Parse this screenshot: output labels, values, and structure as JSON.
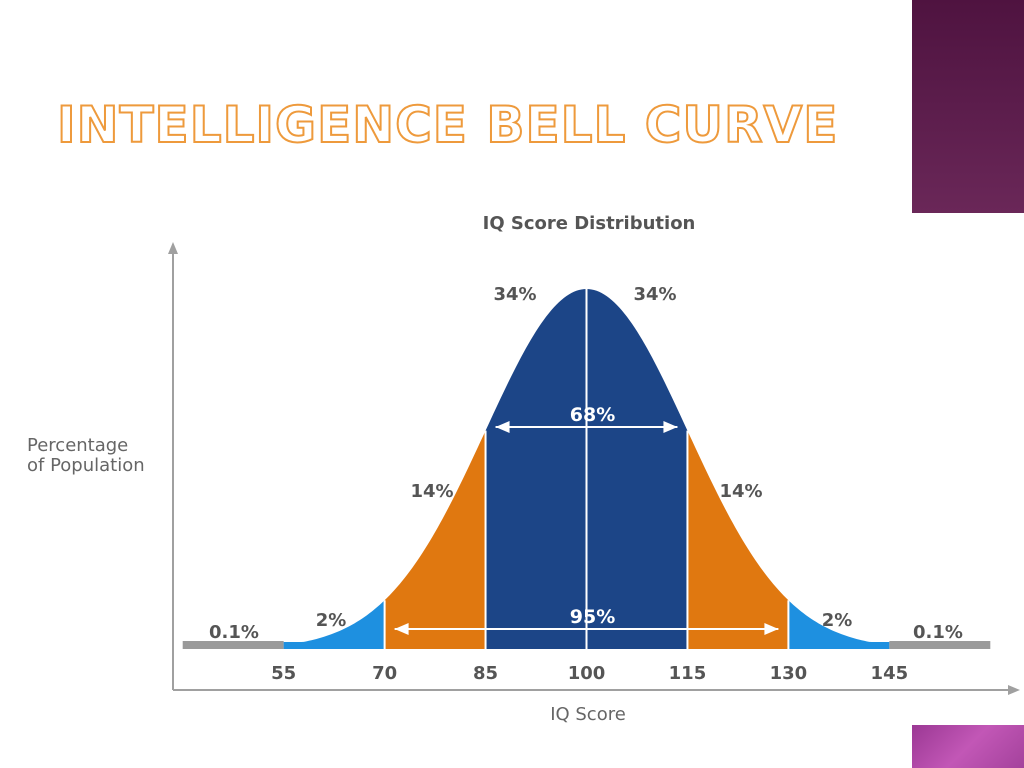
{
  "slide": {
    "title": "INTELLIGENCE BELL CURVE",
    "accent_colors": {
      "title_outline": "#ee9a3c",
      "deco_dark": "#4f1340",
      "deco_light": "#c257b6"
    }
  },
  "chart_data": {
    "type": "area",
    "title": "IQ Score Distribution",
    "xlabel": "IQ Score",
    "ylabel_lines": [
      "Percentage",
      "of Population"
    ],
    "x_ticks": [
      55,
      70,
      85,
      100,
      115,
      130,
      145
    ],
    "distribution": {
      "mean": 100,
      "std_dev": 15
    },
    "regions": [
      {
        "from": 40,
        "to": 55,
        "percent_label": "0.1%",
        "color": "#9a9a9a"
      },
      {
        "from": 55,
        "to": 70,
        "percent_label": "2%",
        "color": "#1e90e0"
      },
      {
        "from": 70,
        "to": 85,
        "percent_label": "14%",
        "color": "#e07810"
      },
      {
        "from": 85,
        "to": 100,
        "percent_label": "34%",
        "color": "#1c4587"
      },
      {
        "from": 100,
        "to": 115,
        "percent_label": "34%",
        "color": "#1c4587"
      },
      {
        "from": 115,
        "to": 130,
        "percent_label": "14%",
        "color": "#e07810"
      },
      {
        "from": 130,
        "to": 145,
        "percent_label": "2%",
        "color": "#1e90e0"
      },
      {
        "from": 145,
        "to": 160,
        "percent_label": "0.1%",
        "color": "#9a9a9a"
      }
    ],
    "spans": [
      {
        "from": 85,
        "to": 115,
        "label": "68%"
      },
      {
        "from": 70,
        "to": 130,
        "label": "95%"
      }
    ],
    "axis_color": "#a0a0a0",
    "text_color": "#555555",
    "grid": false
  }
}
